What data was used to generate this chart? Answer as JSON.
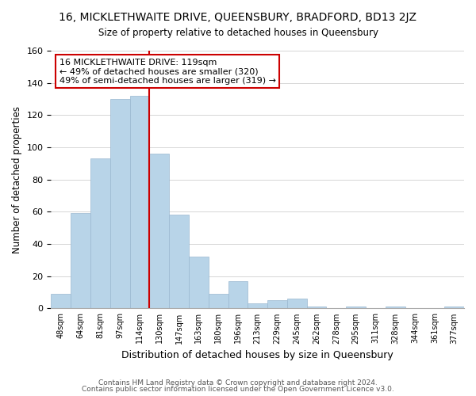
{
  "title": "16, MICKLETHWAITE DRIVE, QUEENSBURY, BRADFORD, BD13 2JZ",
  "subtitle": "Size of property relative to detached houses in Queensbury",
  "bar_labels": [
    "48sqm",
    "64sqm",
    "81sqm",
    "97sqm",
    "114sqm",
    "130sqm",
    "147sqm",
    "163sqm",
    "180sqm",
    "196sqm",
    "213sqm",
    "229sqm",
    "245sqm",
    "262sqm",
    "278sqm",
    "295sqm",
    "311sqm",
    "328sqm",
    "344sqm",
    "361sqm",
    "377sqm"
  ],
  "bar_values": [
    9,
    59,
    93,
    130,
    132,
    96,
    58,
    32,
    9,
    17,
    3,
    5,
    6,
    1,
    0,
    1,
    0,
    1,
    0,
    0,
    1
  ],
  "bar_color": "#b8d4e8",
  "bar_edge_color": "#9ab8d0",
  "vline_x": 4.5,
  "vline_color": "#cc0000",
  "ylabel": "Number of detached properties",
  "xlabel": "Distribution of detached houses by size in Queensbury",
  "ylim": [
    0,
    160
  ],
  "yticks": [
    0,
    20,
    40,
    60,
    80,
    100,
    120,
    140,
    160
  ],
  "annotation_title": "16 MICKLETHWAITE DRIVE: 119sqm",
  "annotation_line1": "← 49% of detached houses are smaller (320)",
  "annotation_line2": "49% of semi-detached houses are larger (319) →",
  "annotation_box_color": "#ffffff",
  "annotation_box_edge": "#cc0000",
  "footer1": "Contains HM Land Registry data © Crown copyright and database right 2024.",
  "footer2": "Contains public sector information licensed under the Open Government Licence v3.0.",
  "bg_color": "#ffffff"
}
